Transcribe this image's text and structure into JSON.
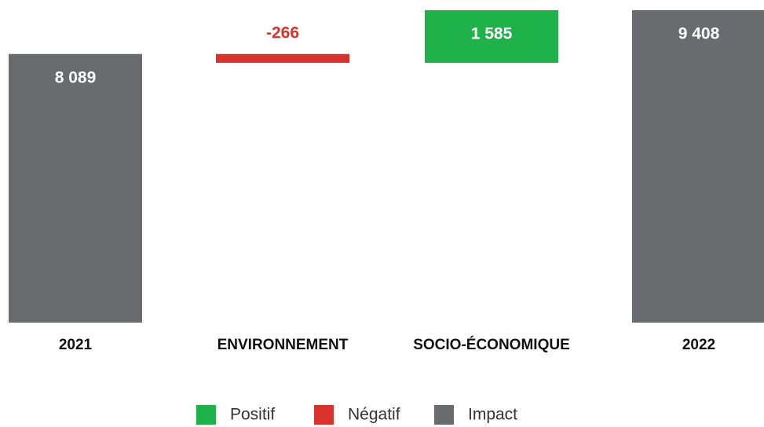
{
  "chart_data": {
    "type": "waterfall",
    "categories": [
      "2021",
      "ENVIRONNEMENT",
      "SOCIO-ÉCONOMIQUE",
      "2022"
    ],
    "values": [
      8089,
      -266,
      1585,
      9408
    ],
    "value_labels": [
      "8 089",
      "-266",
      "1 585",
      "9 408"
    ],
    "measure": [
      "absolute",
      "relative",
      "relative",
      "total"
    ],
    "legend": [
      {
        "name": "Positif",
        "color": "#1fb24a"
      },
      {
        "name": "Négatif",
        "color": "#d9312b"
      },
      {
        "name": "Impact",
        "color": "#696b6f"
      }
    ]
  }
}
